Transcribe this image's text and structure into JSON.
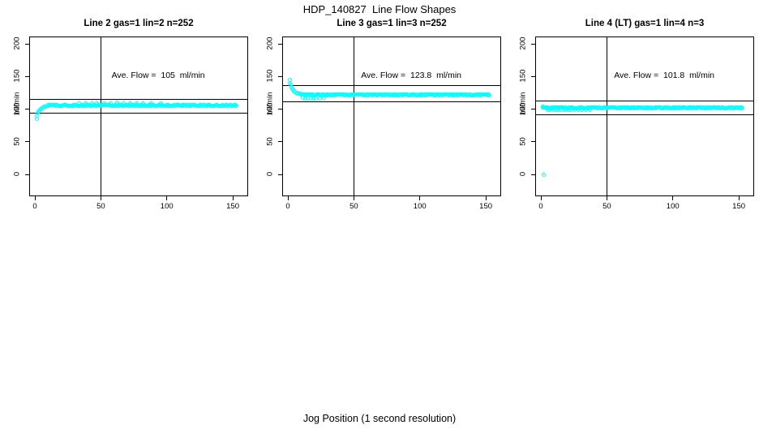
{
  "page": {
    "title": "HDP_140827  Line Flow Shapes",
    "xlabel": "Jog Position (1 second resolution)",
    "background": "#FFFFFF",
    "marker_color": "#00FFFF",
    "axis_color": "#000000"
  },
  "chart_data": [
    {
      "type": "scatter",
      "title": "Line 2 gas=1 lin=2 n=252",
      "annotation": "Ave. Flow =  105  ml/min",
      "ave_flow_ml_min": 105,
      "n": 252,
      "ylabel": "ml/min",
      "x_ticks": [
        0,
        50,
        100,
        150
      ],
      "y_ticks": [
        0,
        50,
        100,
        150,
        200
      ],
      "xlim": [
        -3.7,
        161
      ],
      "ylim": [
        -32,
        210
      ],
      "grid": false,
      "vline_x": 50,
      "hlines_y": [
        115.5,
        94.5
      ],
      "transient_points": [
        [
          1,
          86
        ],
        [
          1.5,
          90.5
        ],
        [
          2,
          94
        ],
        [
          2.5,
          96.5
        ],
        [
          3,
          98.5
        ],
        [
          3.5,
          100
        ],
        [
          4,
          101
        ],
        [
          5,
          102.5
        ],
        [
          6,
          103.6
        ],
        [
          7,
          104.4
        ],
        [
          8,
          105
        ],
        [
          9,
          105.5
        ],
        [
          10,
          105.9
        ]
      ],
      "extra_points": [
        [
          33,
          109
        ],
        [
          38,
          109.6
        ],
        [
          43,
          110
        ],
        [
          47,
          109.4
        ],
        [
          52,
          110
        ],
        [
          57,
          109.7
        ],
        [
          62,
          110.1
        ],
        [
          67,
          109.5
        ],
        [
          72,
          109.9
        ],
        [
          77,
          109.3
        ],
        [
          82,
          109.8
        ],
        [
          88,
          109.4
        ],
        [
          95,
          109.2
        ]
      ],
      "plateau": {
        "x_from": 10,
        "x_to": 153,
        "x_step": 0.75,
        "y": 106.3,
        "jitter": 0.9
      }
    },
    {
      "type": "scatter",
      "title": "Line 3 gas=1 lin=3 n=252",
      "annotation": "Ave. Flow =  123.8  ml/min",
      "ave_flow_ml_min": 123.8,
      "n": 252,
      "ylabel": "ml/min",
      "x_ticks": [
        0,
        50,
        100,
        150
      ],
      "y_ticks": [
        0,
        50,
        100,
        150,
        200
      ],
      "xlim": [
        -3.7,
        161
      ],
      "ylim": [
        -32,
        210
      ],
      "grid": false,
      "vline_x": 50,
      "hlines_y": [
        136.2,
        111.4
      ],
      "transient_points": [
        [
          1,
          145
        ],
        [
          1.5,
          141
        ],
        [
          2,
          137.5
        ],
        [
          2.5,
          134.5
        ],
        [
          3,
          132
        ],
        [
          3.5,
          130
        ],
        [
          4,
          128.5
        ],
        [
          5,
          126.8
        ],
        [
          6,
          125.6
        ],
        [
          7,
          124.8
        ],
        [
          8,
          124.2
        ],
        [
          9,
          123.8
        ],
        [
          10,
          123.5
        ]
      ],
      "extra_points": [
        [
          11,
          118.2
        ],
        [
          13,
          117.4
        ],
        [
          15,
          116.8
        ],
        [
          17,
          117.2
        ],
        [
          19,
          116.6
        ],
        [
          21,
          117.4
        ],
        [
          24,
          117
        ],
        [
          27,
          117.6
        ]
      ],
      "plateau": {
        "x_from": 10,
        "x_to": 153,
        "x_step": 0.75,
        "y": 122.8,
        "jitter": 0.9
      }
    },
    {
      "type": "scatter",
      "title": "Line 4 (LT) gas=1 lin=4 n=3",
      "annotation": "Ave. Flow =  101.8  ml/min",
      "ave_flow_ml_min": 101.8,
      "n": 3,
      "ylabel": "ml/min",
      "x_ticks": [
        0,
        50,
        100,
        150
      ],
      "y_ticks": [
        0,
        50,
        100,
        150,
        200
      ],
      "xlim": [
        -3.7,
        161
      ],
      "ylim": [
        -32,
        210
      ],
      "grid": false,
      "vline_x": 50,
      "hlines_y": [
        112.0,
        91.6
      ],
      "transient_points": [
        [
          2,
          0
        ],
        [
          1,
          104.5
        ],
        [
          2,
          103.8
        ],
        [
          3,
          103.2
        ]
      ],
      "extra_points": [
        [
          5,
          100
        ],
        [
          7,
          99.5
        ],
        [
          9,
          99.8
        ],
        [
          11,
          99.3
        ],
        [
          13,
          99.9
        ],
        [
          15,
          99.5
        ],
        [
          17,
          100
        ],
        [
          19,
          99.4
        ],
        [
          21,
          99.8
        ],
        [
          23,
          99.6
        ],
        [
          25,
          100
        ],
        [
          28,
          99.5
        ],
        [
          31,
          99.8
        ],
        [
          34,
          99.6
        ],
        [
          37,
          100
        ]
      ],
      "plateau": {
        "x_from": 1,
        "x_to": 153,
        "x_step": 0.75,
        "y": 102.8,
        "jitter": 0.9
      }
    }
  ]
}
